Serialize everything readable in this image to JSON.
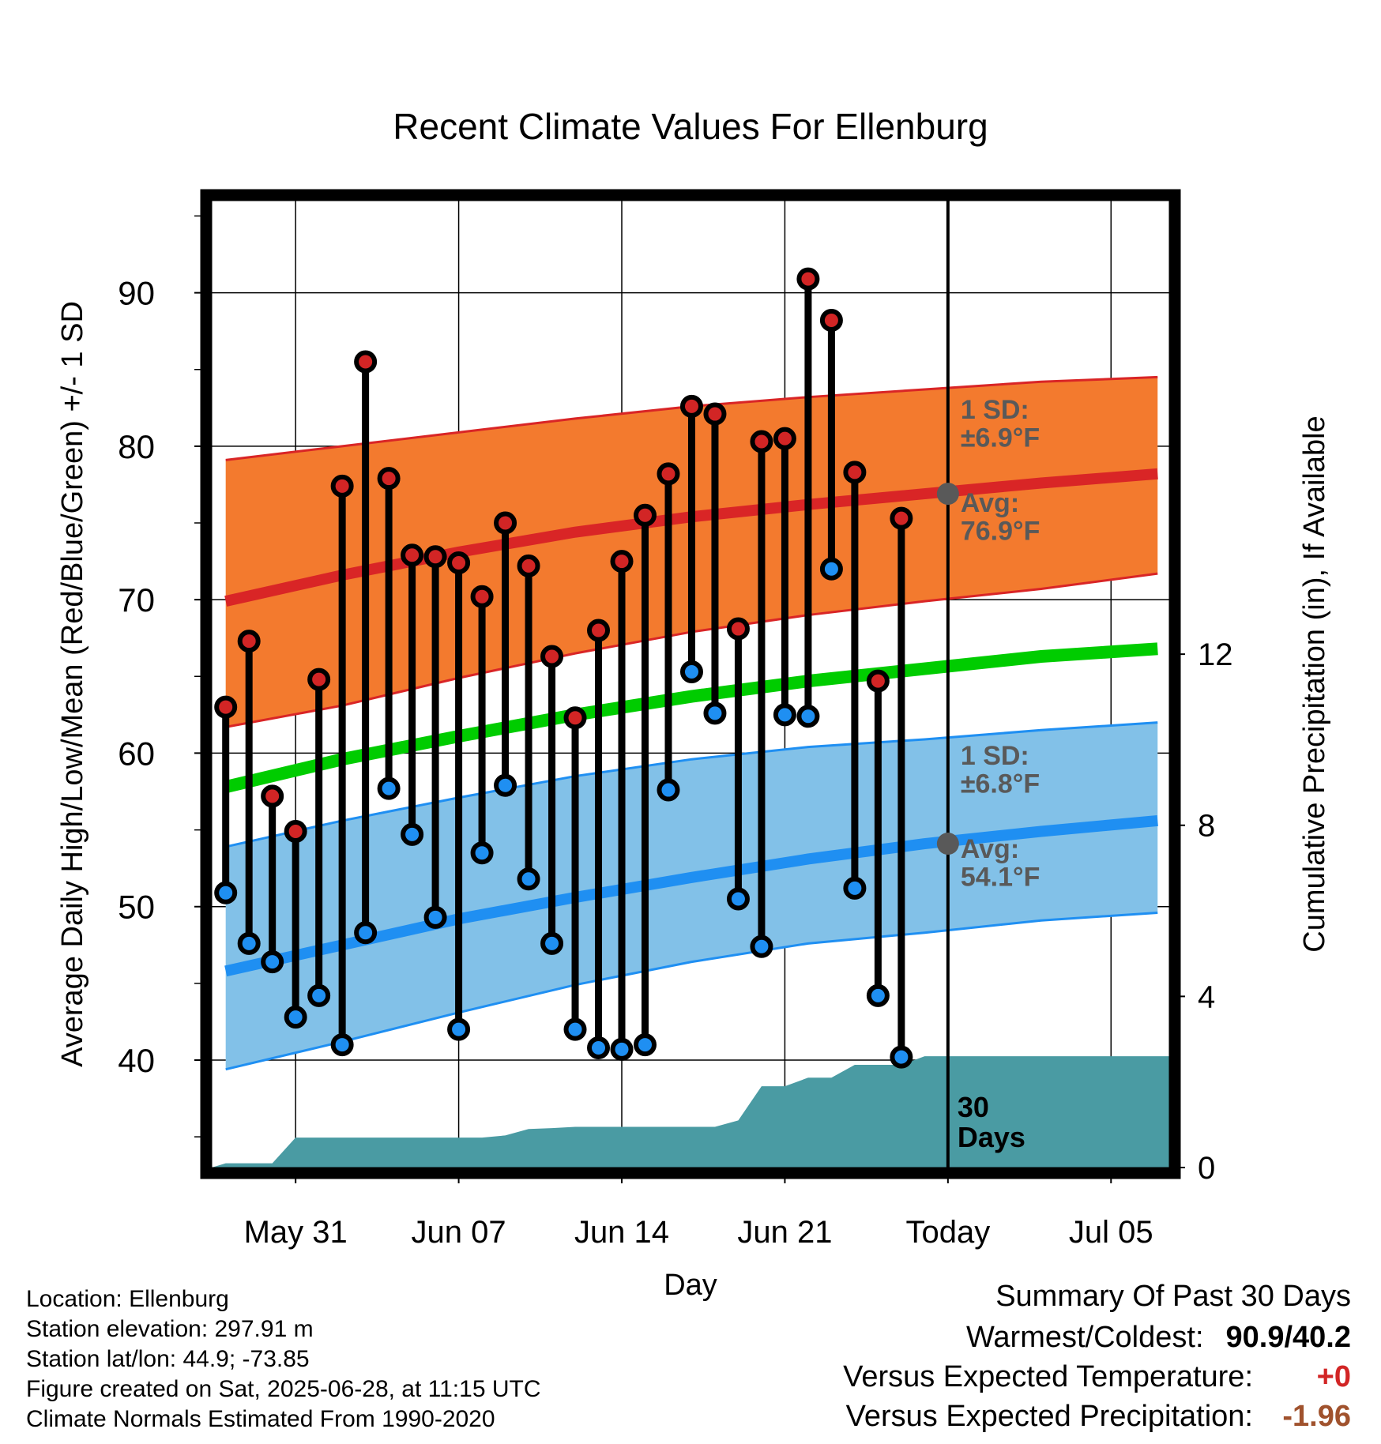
{
  "chart_data": {
    "type": "line",
    "title": "Recent Climate Values For Ellenburg",
    "xlabel": "Day",
    "ylabel": "Average Daily High/Low/Mean (Red/Blue/Green) +/- 1 SD",
    "y2label": "Cumulative Precipitation (in), If Available",
    "ylim": [
      33,
      96
    ],
    "y2lim": [
      0,
      22.6
    ],
    "y_ticks": [
      40,
      50,
      60,
      70,
      80,
      90
    ],
    "y2_ticks": [
      0,
      4,
      8,
      12
    ],
    "x_ticks": [
      {
        "day": 3,
        "label": "May 31"
      },
      {
        "day": 10,
        "label": "Jun 07"
      },
      {
        "day": 17,
        "label": "Jun 14"
      },
      {
        "day": 24,
        "label": "Jun 21"
      },
      {
        "day": 31,
        "label": "Today"
      },
      {
        "day": 38,
        "label": "Jul 05"
      }
    ],
    "x_range_days": [
      -0.6,
      40.5
    ],
    "today_day": 31,
    "daily_high": [
      63.0,
      67.3,
      57.2,
      54.9,
      64.8,
      77.4,
      85.5,
      77.9,
      72.9,
      72.8,
      72.4,
      70.2,
      75.0,
      72.2,
      66.3,
      62.3,
      68.0,
      72.5,
      75.5,
      78.2,
      82.6,
      82.1,
      68.1,
      80.3,
      80.5,
      90.9,
      88.2,
      78.3,
      64.7,
      75.3
    ],
    "daily_low": [
      50.9,
      47.6,
      46.4,
      42.8,
      44.2,
      41.0,
      48.3,
      57.7,
      54.7,
      49.3,
      42.0,
      53.5,
      57.9,
      51.8,
      47.6,
      42.0,
      40.8,
      40.7,
      41.0,
      57.6,
      65.3,
      62.6,
      50.5,
      47.4,
      62.5,
      62.4,
      72.0,
      51.2,
      44.2,
      40.2
    ],
    "normal_high": {
      "days": [
        0,
        5,
        10,
        15,
        20,
        25,
        30,
        35,
        40
      ],
      "mean": [
        69.9,
        71.6,
        73.1,
        74.4,
        75.4,
        76.2,
        76.9,
        77.6,
        78.2
      ],
      "plus_1sd": [
        79.1,
        80.0,
        80.9,
        81.8,
        82.6,
        83.2,
        83.7,
        84.2,
        84.5
      ],
      "minus_1sd": [
        61.7,
        63.1,
        64.9,
        66.5,
        67.9,
        69.0,
        69.9,
        70.7,
        71.7
      ]
    },
    "normal_low": {
      "days": [
        0,
        5,
        10,
        15,
        20,
        25,
        30,
        35,
        40
      ],
      "mean": [
        45.8,
        47.5,
        49.2,
        50.6,
        51.9,
        53.1,
        54.1,
        54.9,
        55.6
      ],
      "plus_1sd": [
        53.9,
        55.6,
        57.1,
        58.5,
        59.6,
        60.4,
        60.9,
        61.5,
        62.0
      ],
      "minus_1sd": [
        39.4,
        41.2,
        43.1,
        44.9,
        46.4,
        47.6,
        48.3,
        49.1,
        49.6
      ]
    },
    "normal_mean": {
      "days": [
        0,
        5,
        10,
        15,
        20,
        25,
        30,
        35,
        40
      ],
      "values": [
        57.8,
        59.6,
        61.1,
        62.5,
        63.7,
        64.7,
        65.5,
        66.3,
        66.8
      ]
    },
    "precip_cumulative": {
      "days": [
        -0.6,
        0,
        1,
        2,
        3,
        4,
        5,
        6,
        7,
        8,
        9,
        10,
        11,
        12,
        13,
        14,
        15,
        16,
        17,
        18,
        19,
        20,
        21,
        22,
        23,
        24,
        25,
        26,
        27,
        28,
        29,
        30,
        31,
        40.5
      ],
      "values": [
        0.0,
        0.1,
        0.1,
        0.1,
        0.7,
        0.7,
        0.7,
        0.7,
        0.7,
        0.7,
        0.7,
        0.7,
        0.7,
        0.75,
        0.9,
        0.92,
        0.95,
        0.95,
        0.95,
        0.95,
        0.95,
        0.95,
        0.95,
        1.1,
        1.9,
        1.9,
        2.1,
        2.1,
        2.4,
        2.4,
        2.4,
        2.6,
        2.6,
        2.6
      ]
    },
    "annotations": {
      "high_sd": {
        "line1": "1 SD:",
        "line2": "±6.9°F"
      },
      "high_avg": {
        "line1": "Avg:",
        "line2": "76.9°F",
        "value": 76.9
      },
      "low_sd": {
        "line1": "1 SD:",
        "line2": "±6.8°F"
      },
      "low_avg": {
        "line1": "Avg:",
        "line2": "54.1°F",
        "value": 54.1
      },
      "days_label": {
        "line1": "30",
        "line2": "Days"
      }
    },
    "colors": {
      "high_band": "#f37a2e",
      "high_line": "#d92526",
      "low_band": "#82c1e8",
      "low_line": "#1f8ff2",
      "mean_line": "#00cc00",
      "precip": "#4a9ba3",
      "high_dot": "#d22525",
      "low_dot": "#1f8ff2",
      "annotation_text": "#595959",
      "avg_marker": "#595959"
    }
  },
  "station": {
    "location": "Location: Ellenburg",
    "elevation": "Station elevation: 297.91 m",
    "latlon": "Station lat/lon: 44.9; -73.85",
    "created": "Figure created on Sat, 2025-06-28, at 11:15 UTC",
    "normals": "Climate Normals Estimated From 1990-2020"
  },
  "summary": {
    "title": "Summary Of Past 30 Days",
    "warmest_label": "Warmest/Coldest:",
    "warmest_value": "90.9/40.2",
    "temp_label": "Versus Expected Temperature:",
    "temp_value": "+0",
    "temp_color": "#d22525",
    "precip_label": "Versus Expected Precipitation:",
    "precip_value": "-1.96",
    "precip_color": "#a0522d"
  }
}
